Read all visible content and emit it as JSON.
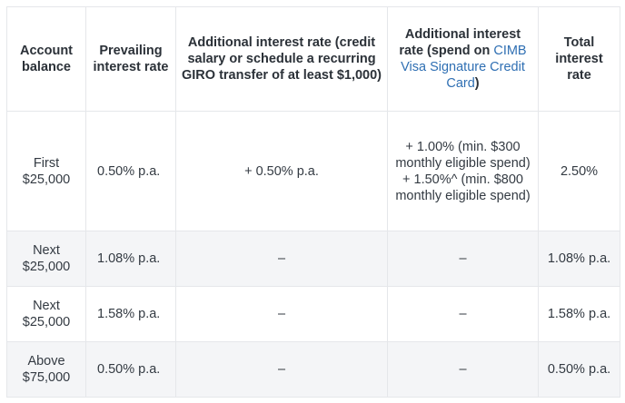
{
  "headers": {
    "balance": "Account balance",
    "prevailing": "Prevailing interest rate",
    "salary": "Additional interest rate (credit salary or schedule a recurring GIRO transfer of at least $1,000)",
    "spend_prefix": "Additional interest rate (spend on",
    "spend_link": "CIMB Visa Signature Credit Card",
    "spend_suffix": ")",
    "total": "Total interest rate"
  },
  "rows": [
    {
      "balance": "First $25,000",
      "prevailing": "0.50% p.a.",
      "salary": "+ 0.50% p.a.",
      "spend_line1": "+ 1.00% (min. $300 monthly eligible spend)",
      "spend_line2": "+ 1.50%^ (min. $800 monthly eligible spend)",
      "total": "2.50%"
    },
    {
      "balance": "Next $25,000",
      "prevailing": "1.08% p.a.",
      "salary": "–",
      "spend": "–",
      "total": "1.08% p.a."
    },
    {
      "balance": "Next $25,000",
      "prevailing": "1.58% p.a.",
      "salary": "–",
      "spend": "–",
      "total": "1.58% p.a."
    },
    {
      "balance": "Above $75,000",
      "prevailing": "0.50% p.a.",
      "salary": "–",
      "spend": "–",
      "total": "0.50% p.a."
    }
  ]
}
